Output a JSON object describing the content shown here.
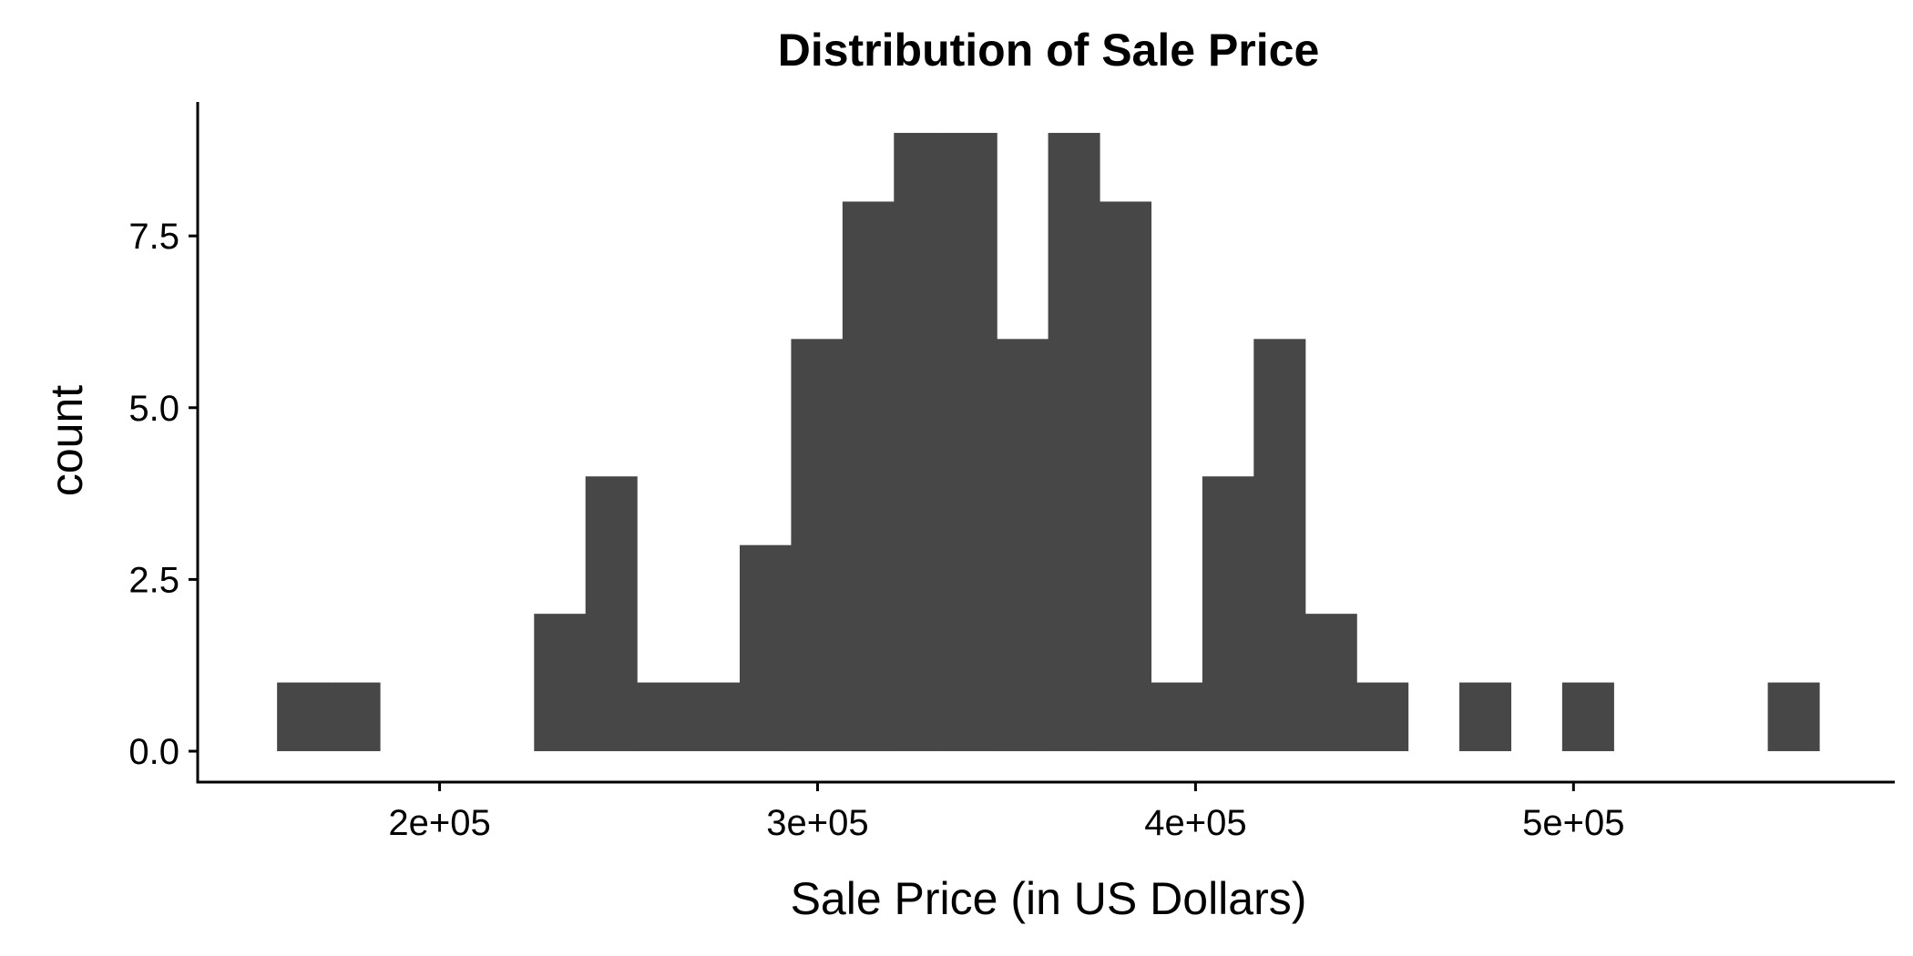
{
  "chart_data": {
    "type": "bar",
    "title": "Distribution of Sale Price",
    "xlabel": "Sale Price (in US Dollars)",
    "ylabel": "count",
    "bin_width": 13600,
    "bins": [
      {
        "start": 157000,
        "count": 1
      },
      {
        "start": 170600,
        "count": 1
      },
      {
        "start": 184200,
        "count": 0
      },
      {
        "start": 197800,
        "count": 0
      },
      {
        "start": 211400,
        "count": 0
      },
      {
        "start": 225000,
        "count": 2
      },
      {
        "start": 238600,
        "count": 4
      },
      {
        "start": 252200,
        "count": 1
      },
      {
        "start": 265800,
        "count": 1
      },
      {
        "start": 279400,
        "count": 3
      },
      {
        "start": 293000,
        "count": 6
      },
      {
        "start": 306600,
        "count": 8
      },
      {
        "start": 320200,
        "count": 9
      },
      {
        "start": 333800,
        "count": 9
      },
      {
        "start": 347400,
        "count": 6
      },
      {
        "start": 361000,
        "count": 9
      },
      {
        "start": 374600,
        "count": 8
      },
      {
        "start": 388200,
        "count": 1
      },
      {
        "start": 401800,
        "count": 4
      },
      {
        "start": 415400,
        "count": 6
      },
      {
        "start": 429000,
        "count": 2
      },
      {
        "start": 442600,
        "count": 1
      },
      {
        "start": 456200,
        "count": 0
      },
      {
        "start": 469800,
        "count": 1
      },
      {
        "start": 483400,
        "count": 0
      },
      {
        "start": 497000,
        "count": 1
      },
      {
        "start": 510600,
        "count": 0
      },
      {
        "start": 524200,
        "count": 0
      },
      {
        "start": 537800,
        "count": 0
      },
      {
        "start": 551400,
        "count": 1
      }
    ],
    "xlim": [
      136000,
      585000
    ],
    "ylim": [
      -0.45,
      9.45
    ],
    "x_ticks": [
      {
        "value": 200000,
        "label": "2e+05"
      },
      {
        "value": 300000,
        "label": "3e+05"
      },
      {
        "value": 400000,
        "label": "4e+05"
      },
      {
        "value": 500000,
        "label": "5e+05"
      }
    ],
    "y_ticks": [
      {
        "value": 0,
        "label": "0.0"
      },
      {
        "value": 2.5,
        "label": "2.5"
      },
      {
        "value": 5,
        "label": "5.0"
      },
      {
        "value": 7.5,
        "label": "7.5"
      }
    ],
    "grid": false,
    "bar_color": "#474747",
    "axis_color": "#000000"
  }
}
